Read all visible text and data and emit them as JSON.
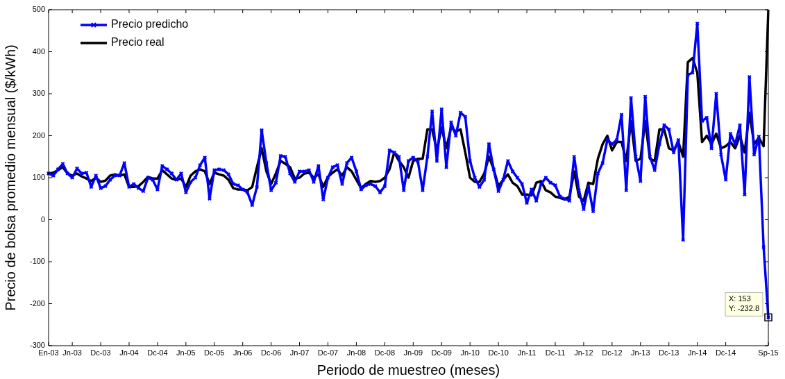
{
  "chart_data": {
    "type": "line",
    "xlabel": "Periodo de muestreo (meses)",
    "ylabel": "Precio de bolsa promedio mensual ($/kWh)",
    "categories": [
      "En-03",
      null,
      null,
      null,
      null,
      "Jn-03",
      null,
      null,
      null,
      null,
      null,
      "Dc-03",
      null,
      null,
      null,
      null,
      null,
      "Jn-04",
      null,
      null,
      null,
      null,
      null,
      "Dc-04",
      null,
      null,
      null,
      null,
      null,
      "Jn-05",
      null,
      null,
      null,
      null,
      null,
      "Dc-05",
      null,
      null,
      null,
      null,
      null,
      "Jn-06",
      null,
      null,
      null,
      null,
      null,
      "Dc-06",
      null,
      null,
      null,
      null,
      null,
      "Jn-07",
      null,
      null,
      null,
      null,
      null,
      "Dc-07",
      null,
      null,
      null,
      null,
      null,
      "Jn-08",
      null,
      null,
      null,
      null,
      null,
      "Dc-08",
      null,
      null,
      null,
      null,
      null,
      "Jn-09",
      null,
      null,
      null,
      null,
      null,
      "Dc-09",
      null,
      null,
      null,
      null,
      null,
      "Jn-10",
      null,
      null,
      null,
      null,
      null,
      "Dc-10",
      null,
      null,
      null,
      null,
      null,
      "Jn-11",
      null,
      null,
      null,
      null,
      null,
      "Dc-11",
      null,
      null,
      null,
      null,
      null,
      "Jn-12",
      null,
      null,
      null,
      null,
      null,
      "Dc-12",
      null,
      null,
      null,
      null,
      null,
      "Jn-13",
      null,
      null,
      null,
      null,
      null,
      "Dc-13",
      null,
      null,
      null,
      null,
      null,
      "Jn-14",
      null,
      null,
      null,
      null,
      null,
      "Dc-14",
      null,
      null,
      null,
      null,
      null,
      null,
      null,
      null,
      "Sp-15"
    ],
    "ylim": [
      -300,
      500
    ],
    "yticks": [
      -300,
      -200,
      -100,
      0,
      100,
      200,
      300,
      400,
      500
    ],
    "legend": "top left",
    "line_style": "solid",
    "series": [
      {
        "name": "Precio predicho",
        "color": "#0000ff",
        "marker": "cross",
        "values": [
          110,
          105,
          120,
          133,
          110,
          100,
          122,
          110,
          112,
          78,
          105,
          75,
          80,
          95,
          105,
          105,
          135,
          78,
          85,
          75,
          68,
          100,
          95,
          72,
          128,
          120,
          110,
          95,
          110,
          65,
          90,
          100,
          130,
          148,
          50,
          118,
          120,
          118,
          108,
          85,
          82,
          72,
          65,
          35,
          78,
          213,
          135,
          70,
          88,
          152,
          150,
          110,
          90,
          115,
          115,
          118,
          90,
          128,
          48,
          100,
          125,
          130,
          85,
          135,
          148,
          115,
          72,
          82,
          85,
          80,
          65,
          80,
          165,
          160,
          150,
          70,
          140,
          148,
          138,
          70,
          150,
          258,
          140,
          263,
          125,
          232,
          200,
          255,
          245,
          140,
          100,
          78,
          95,
          180,
          120,
          68,
          95,
          140,
          115,
          100,
          85,
          40,
          72,
          45,
          85,
          100,
          88,
          82,
          55,
          50,
          45,
          150,
          70,
          25,
          80,
          20,
          110,
          135,
          190,
          180,
          190,
          250,
          70,
          290,
          150,
          92,
          293,
          150,
          118,
          180,
          225,
          215,
          160,
          190,
          -48,
          345,
          350,
          467,
          235,
          243,
          170,
          300,
          155,
          95,
          205,
          180,
          225,
          60,
          340,
          155,
          198,
          -65,
          -232.8
        ]
      },
      {
        "name": "Precio real",
        "color": "#000000",
        "marker": "none",
        "values": [
          110,
          112,
          118,
          125,
          110,
          105,
          110,
          103,
          98,
          92,
          100,
          90,
          93,
          105,
          108,
          105,
          108,
          78,
          78,
          80,
          90,
          102,
          98,
          98,
          118,
          108,
          98,
          95,
          98,
          78,
          105,
          115,
          120,
          115,
          85,
          112,
          108,
          105,
          95,
          75,
          72,
          72,
          70,
          78,
          125,
          170,
          115,
          85,
          110,
          140,
          133,
          125,
          98,
          100,
          110,
          112,
          100,
          108,
          78,
          102,
          112,
          120,
          105,
          125,
          115,
          95,
          75,
          85,
          92,
          90,
          92,
          100,
          120,
          160,
          140,
          125,
          100,
          140,
          145,
          145,
          215,
          215,
          165,
          220,
          170,
          220,
          210,
          215,
          160,
          100,
          90,
          90,
          110,
          150,
          120,
          80,
          95,
          108,
          88,
          80,
          60,
          60,
          58,
          88,
          92,
          70,
          65,
          55,
          52,
          48,
          55,
          115,
          55,
          45,
          88,
          85,
          145,
          180,
          200,
          165,
          185,
          185,
          140,
          235,
          140,
          145,
          235,
          145,
          140,
          215,
          215,
          170,
          165,
          185,
          150,
          375,
          385,
          350,
          185,
          200,
          180,
          205,
          170,
          175,
          185,
          170,
          200,
          160,
          255,
          180,
          195,
          175,
          500
        ]
      }
    ],
    "annotations": [
      {
        "text": "X: 153\nY: -232.8",
        "x": "Sp-15",
        "y": -232.8
      }
    ]
  }
}
